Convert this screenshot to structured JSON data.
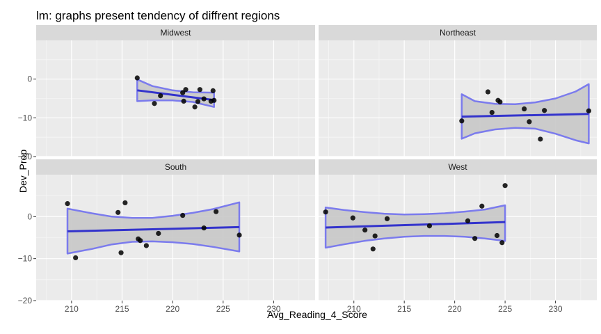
{
  "chart_data": {
    "type": "scatter",
    "title": "lm: graphs present tendency of diffrent regions",
    "xlabel": "Avg_Reading_4_Score",
    "ylabel": "Dev_Prop",
    "ylim": [
      -20,
      10
    ],
    "y_ticks": [
      -20,
      -10,
      0
    ],
    "x_ticks_left": [
      210,
      215,
      220,
      225,
      230
    ],
    "x_ticks_right": [
      210,
      215,
      220,
      225,
      230
    ],
    "xlim_left": [
      206.5,
      234.1
    ],
    "xlim_right": [
      206.5,
      234.1
    ],
    "grid": true,
    "colors": {
      "point": "#000000",
      "fit_line": "#3333cc",
      "ribbon_fill": "#c8c8c8",
      "ribbon_edge": "#7b7bed",
      "panel_bg": "#ebebeb",
      "strip_bg": "#d9d9d9",
      "grid": "#ffffff"
    },
    "panels": [
      {
        "name": "Midwest",
        "points": [
          [
            216.5,
            0.3
          ],
          [
            218.2,
            -6.3
          ],
          [
            218.8,
            -4.3
          ],
          [
            221.0,
            -3.5
          ],
          [
            221.3,
            -2.7
          ],
          [
            221.1,
            -5.7
          ],
          [
            222.2,
            -7.2
          ],
          [
            222.5,
            -5.8
          ],
          [
            222.7,
            -2.7
          ],
          [
            223.1,
            -5.1
          ],
          [
            223.8,
            -5.7
          ],
          [
            224.0,
            -3.0
          ],
          [
            224.1,
            -5.5
          ]
        ],
        "fit": {
          "x": [
            216.5,
            224.1
          ],
          "y": [
            -2.9,
            -5.4
          ]
        },
        "band": {
          "x": [
            216.5,
            218.0,
            220.0,
            222.0,
            224.1
          ],
          "upper": [
            -0.1,
            -1.8,
            -2.9,
            -3.4,
            -3.5
          ],
          "lower": [
            -5.7,
            -5.5,
            -5.5,
            -5.9,
            -7.2
          ]
        }
      },
      {
        "name": "Northeast",
        "points": [
          [
            220.7,
            -10.8
          ],
          [
            223.3,
            -3.3
          ],
          [
            223.7,
            -8.6
          ],
          [
            224.3,
            -5.5
          ],
          [
            224.5,
            -5.9
          ],
          [
            226.9,
            -7.7
          ],
          [
            227.4,
            -11.0
          ],
          [
            228.5,
            -15.5
          ],
          [
            228.9,
            -8.1
          ],
          [
            233.3,
            -8.2
          ]
        ],
        "fit": {
          "x": [
            220.7,
            233.3
          ],
          "y": [
            -9.7,
            -9.0
          ]
        },
        "band": {
          "x": [
            220.7,
            222.0,
            224.0,
            226.0,
            228.0,
            230.0,
            232.0,
            233.3
          ],
          "upper": [
            -3.9,
            -5.7,
            -6.4,
            -6.5,
            -6.0,
            -5.0,
            -3.2,
            -1.3
          ],
          "lower": [
            -15.4,
            -14.0,
            -13.0,
            -12.6,
            -12.8,
            -14.1,
            -15.8,
            -16.6
          ]
        }
      },
      {
        "name": "South",
        "points": [
          [
            209.6,
            3.1
          ],
          [
            210.4,
            -9.8
          ],
          [
            214.6,
            1.0
          ],
          [
            214.9,
            -8.6
          ],
          [
            215.3,
            3.3
          ],
          [
            216.6,
            -5.3
          ],
          [
            216.8,
            -5.7
          ],
          [
            217.4,
            -6.9
          ],
          [
            218.6,
            -4.0
          ],
          [
            221.0,
            0.3
          ],
          [
            223.1,
            -2.7
          ],
          [
            224.3,
            1.2
          ],
          [
            226.6,
            -4.4
          ]
        ],
        "fit": {
          "x": [
            209.6,
            226.6
          ],
          "y": [
            -3.5,
            -2.5
          ]
        },
        "band": {
          "x": [
            209.6,
            212.0,
            214.0,
            216.0,
            218.0,
            220.0,
            222.0,
            224.0,
            226.6
          ],
          "upper": [
            1.9,
            0.8,
            0.0,
            -0.3,
            -0.3,
            0.2,
            0.9,
            1.8,
            3.4
          ],
          "lower": [
            -8.8,
            -7.7,
            -6.6,
            -6.0,
            -5.9,
            -6.1,
            -6.5,
            -7.2,
            -8.3
          ]
        }
      },
      {
        "name": "West",
        "points": [
          [
            207.2,
            1.1
          ],
          [
            209.9,
            -0.3
          ],
          [
            211.1,
            -3.2
          ],
          [
            211.9,
            -7.7
          ],
          [
            212.1,
            -4.6
          ],
          [
            213.3,
            -0.5
          ],
          [
            217.5,
            -2.2
          ],
          [
            221.3,
            -1.0
          ],
          [
            222.0,
            -5.2
          ],
          [
            222.7,
            2.5
          ],
          [
            224.2,
            -4.5
          ],
          [
            224.7,
            -6.2
          ],
          [
            225.0,
            7.4
          ]
        ],
        "fit": {
          "x": [
            207.2,
            225.0
          ],
          "y": [
            -2.6,
            -1.3
          ]
        },
        "band": {
          "x": [
            207.2,
            209.0,
            211.0,
            213.0,
            215.0,
            217.0,
            219.0,
            221.0,
            223.0,
            225.0
          ],
          "upper": [
            2.2,
            1.6,
            1.1,
            0.7,
            0.5,
            0.6,
            0.8,
            1.2,
            1.7,
            2.7
          ],
          "lower": [
            -7.4,
            -6.6,
            -5.8,
            -5.2,
            -4.8,
            -4.6,
            -4.6,
            -4.8,
            -5.2,
            -5.8
          ]
        }
      }
    ]
  }
}
